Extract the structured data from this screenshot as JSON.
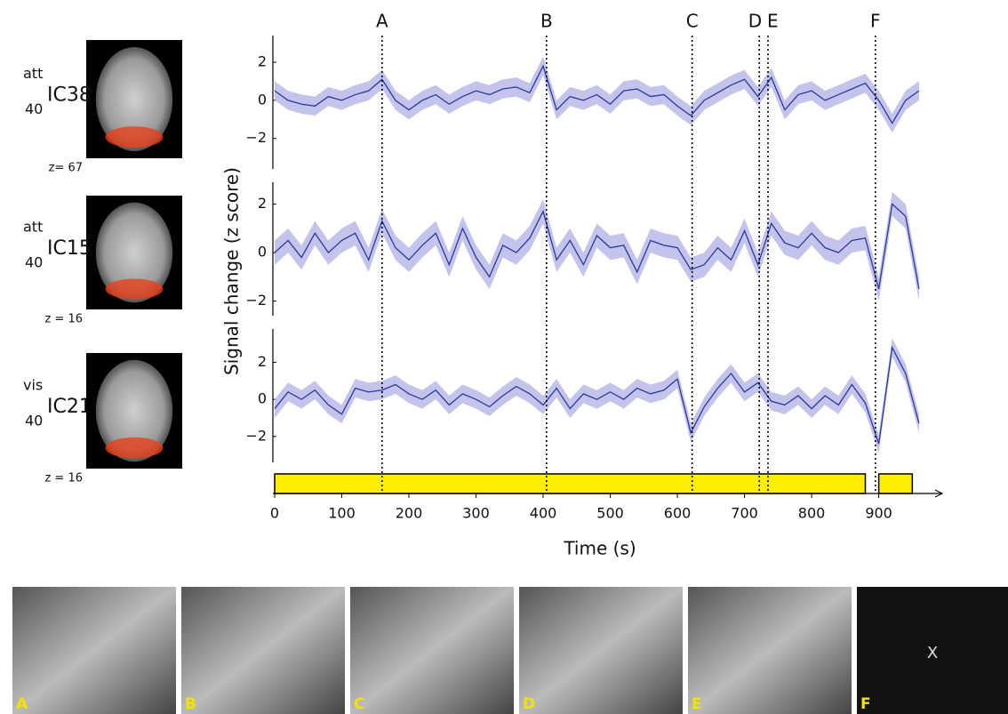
{
  "chart_data": {
    "type": "line",
    "xlabel": "Time (s)",
    "ylabel": "Signal change (z score)",
    "x": [
      0,
      20,
      40,
      60,
      80,
      100,
      120,
      140,
      160,
      180,
      200,
      220,
      240,
      260,
      280,
      300,
      320,
      340,
      360,
      380,
      400,
      420,
      440,
      460,
      480,
      500,
      520,
      540,
      560,
      580,
      600,
      620,
      640,
      660,
      680,
      700,
      720,
      740,
      760,
      780,
      800,
      820,
      840,
      860,
      880,
      900,
      920,
      940,
      960
    ],
    "xlim": [
      0,
      980
    ],
    "xticks": [
      0,
      100,
      200,
      300,
      400,
      500,
      600,
      700,
      800,
      900
    ],
    "events": [
      {
        "label": "A",
        "x": 160
      },
      {
        "label": "B",
        "x": 405
      },
      {
        "label": "C",
        "x": 622
      },
      {
        "label": "D",
        "x": 722
      },
      {
        "label": "E",
        "x": 735
      },
      {
        "label": "F",
        "x": 895
      }
    ],
    "stimulus": [
      [
        0,
        880
      ],
      [
        900,
        950
      ]
    ],
    "stimulus_color": "#ffee00",
    "series": [
      {
        "prefix": "att",
        "number": "40",
        "name": "IC38",
        "slice": "z= 67",
        "color": "#2b3a9b",
        "band_color": "#b9b9e9",
        "error": 0.5,
        "ylim": [
          -3.6,
          3.4
        ],
        "yticks": [
          {
            "value": -2,
            "label": "−2"
          },
          0,
          2
        ],
        "values": [
          0.5,
          0,
          -0.2,
          -0.3,
          0.2,
          0,
          0.3,
          0.5,
          1.1,
          0,
          -0.5,
          0,
          0.3,
          -0.2,
          0.2,
          0.5,
          0.3,
          0.6,
          0.7,
          0.4,
          1.8,
          -0.5,
          0.2,
          0,
          0.3,
          -0.2,
          0.5,
          0.6,
          0.2,
          0.3,
          -0.3,
          -0.8,
          0,
          0.4,
          0.8,
          1.1,
          0.2,
          1.2,
          -0.5,
          0.3,
          0.5,
          0,
          0.3,
          0.6,
          0.9,
          0,
          -1.2,
          0,
          0.5
        ]
      },
      {
        "prefix": "att",
        "number": "40",
        "name": "IC15",
        "slice": "z = 16",
        "color": "#2b3a9b",
        "band_color": "#b9b9e9",
        "error": 0.5,
        "ylim": [
          -2.6,
          2.9
        ],
        "yticks": [
          {
            "value": -2,
            "label": "−2"
          },
          0,
          2
        ],
        "values": [
          0,
          0.5,
          -0.2,
          0.8,
          0,
          0.5,
          0.8,
          -0.3,
          1.3,
          0.2,
          -0.3,
          0.3,
          0.8,
          -0.5,
          1,
          -0.2,
          -1,
          0.3,
          0,
          0.6,
          1.7,
          -0.3,
          0.5,
          -0.5,
          0.7,
          0.2,
          0.3,
          -0.8,
          0.5,
          0.3,
          0.2,
          -0.7,
          -0.5,
          0.2,
          -0.3,
          0.9,
          -0.5,
          1.2,
          0.4,
          0.2,
          0.8,
          0.2,
          0,
          0.5,
          0.6,
          -1.5,
          2,
          1.5,
          -1.5
        ]
      },
      {
        "prefix": "vis",
        "number": "40",
        "name": "IC21",
        "slice": "z = 16",
        "color": "#2b3a9b",
        "band_color": "#b9b9e9",
        "error": 0.5,
        "ylim": [
          -3.4,
          3.8
        ],
        "yticks": [
          {
            "value": -2,
            "label": "−2"
          },
          0,
          2
        ],
        "values": [
          -0.5,
          0.4,
          0,
          0.5,
          -0.3,
          -0.8,
          0.6,
          0.4,
          0.5,
          0.8,
          0.3,
          0,
          0.5,
          -0.3,
          0.3,
          0,
          -0.4,
          0.2,
          0.7,
          0.3,
          -0.3,
          0.6,
          -0.5,
          0.3,
          0,
          0.4,
          0,
          0.6,
          0.3,
          0.5,
          1.1,
          -1.8,
          -0.4,
          0.6,
          1.4,
          0.4,
          0.9,
          -0.1,
          -0.3,
          0.2,
          -0.5,
          0.2,
          -0.3,
          0.8,
          -0.2,
          -2.4,
          2.8,
          1.4,
          -1.3
        ]
      }
    ],
    "stills": [
      {
        "label": "A"
      },
      {
        "label": "B"
      },
      {
        "label": "C"
      },
      {
        "label": "D"
      },
      {
        "label": "E"
      },
      {
        "label": "F",
        "text": "X"
      }
    ]
  }
}
